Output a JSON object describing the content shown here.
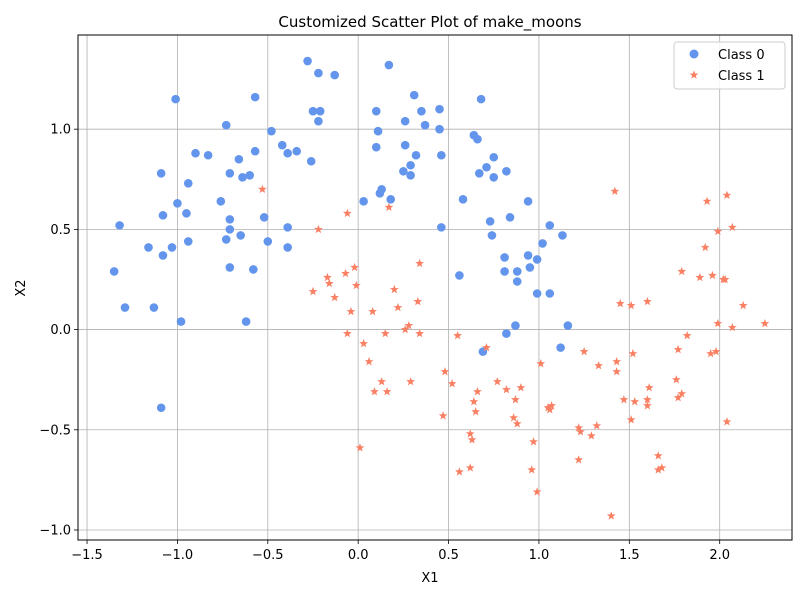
{
  "chart_data": {
    "type": "scatter",
    "title": "Customized Scatter Plot of make_moons",
    "xlabel": "X1",
    "ylabel": "X2",
    "xlim": [
      -1.55,
      2.4
    ],
    "ylim": [
      -1.05,
      1.47
    ],
    "xticks": [
      -1.5,
      -1.0,
      -0.5,
      0.0,
      0.5,
      1.0,
      1.5,
      2.0
    ],
    "xtick_labels": [
      "−1.5",
      "−1.0",
      "−0.5",
      "0.0",
      "0.5",
      "1.0",
      "1.5",
      "2.0"
    ],
    "yticks": [
      -1.0,
      -0.5,
      0.0,
      0.5,
      1.0
    ],
    "ytick_labels": [
      "−1.0",
      "−0.5",
      "0.0",
      "0.5",
      "1.0"
    ],
    "grid": true,
    "legend_position": "top-right",
    "series": [
      {
        "name": "Class 0",
        "marker": "circle",
        "color": "#6495ED",
        "points": [
          [
            -1.35,
            0.29
          ],
          [
            -1.32,
            0.52
          ],
          [
            -1.29,
            0.11
          ],
          [
            -1.16,
            0.41
          ],
          [
            -1.13,
            0.11
          ],
          [
            -1.09,
            0.78
          ],
          [
            -1.08,
            0.57
          ],
          [
            -1.08,
            0.37
          ],
          [
            -1.09,
            -0.39
          ],
          [
            -1.03,
            0.41
          ],
          [
            -1.01,
            1.15
          ],
          [
            -1.0,
            0.63
          ],
          [
            -0.98,
            0.04
          ],
          [
            -0.95,
            0.58
          ],
          [
            -0.94,
            0.73
          ],
          [
            -0.94,
            0.44
          ],
          [
            -0.9,
            0.88
          ],
          [
            -0.83,
            0.87
          ],
          [
            -0.76,
            0.64
          ],
          [
            -0.73,
            1.02
          ],
          [
            -0.73,
            0.45
          ],
          [
            -0.71,
            0.78
          ],
          [
            -0.71,
            0.55
          ],
          [
            -0.71,
            0.5
          ],
          [
            -0.71,
            0.31
          ],
          [
            -0.66,
            0.85
          ],
          [
            -0.65,
            0.47
          ],
          [
            -0.64,
            0.76
          ],
          [
            -0.62,
            0.04
          ],
          [
            -0.6,
            0.77
          ],
          [
            -0.57,
            1.16
          ],
          [
            -0.57,
            0.89
          ],
          [
            -0.58,
            0.3
          ],
          [
            -0.52,
            0.56
          ],
          [
            -0.5,
            0.44
          ],
          [
            -0.48,
            0.99
          ],
          [
            -0.42,
            0.92
          ],
          [
            -0.39,
            0.88
          ],
          [
            -0.39,
            0.51
          ],
          [
            -0.39,
            0.41
          ],
          [
            -0.34,
            0.89
          ],
          [
            -0.28,
            1.34
          ],
          [
            -0.26,
            0.84
          ],
          [
            -0.25,
            1.09
          ],
          [
            -0.22,
            1.28
          ],
          [
            -0.22,
            1.04
          ],
          [
            -0.21,
            1.09
          ],
          [
            -0.13,
            1.27
          ],
          [
            0.03,
            0.64
          ],
          [
            0.1,
            1.09
          ],
          [
            0.1,
            0.91
          ],
          [
            0.11,
            0.99
          ],
          [
            0.12,
            0.68
          ],
          [
            0.13,
            0.7
          ],
          [
            0.17,
            1.32
          ],
          [
            0.18,
            0.65
          ],
          [
            0.25,
            0.79
          ],
          [
            0.26,
            1.04
          ],
          [
            0.26,
            0.92
          ],
          [
            0.29,
            0.82
          ],
          [
            0.29,
            0.77
          ],
          [
            0.31,
            1.17
          ],
          [
            0.32,
            0.87
          ],
          [
            0.35,
            1.09
          ],
          [
            0.37,
            1.02
          ],
          [
            0.45,
            1.1
          ],
          [
            0.45,
            1.0
          ],
          [
            0.46,
            0.87
          ],
          [
            0.46,
            0.51
          ],
          [
            0.56,
            0.27
          ],
          [
            0.58,
            0.65
          ],
          [
            0.64,
            0.97
          ],
          [
            0.66,
            0.95
          ],
          [
            0.67,
            0.78
          ],
          [
            0.68,
            1.15
          ],
          [
            0.69,
            -0.11
          ],
          [
            0.71,
            0.81
          ],
          [
            0.73,
            0.54
          ],
          [
            0.74,
            0.47
          ],
          [
            0.75,
            0.86
          ],
          [
            0.75,
            0.76
          ],
          [
            0.81,
            0.36
          ],
          [
            0.81,
            0.29
          ],
          [
            0.82,
            0.79
          ],
          [
            0.82,
            -0.02
          ],
          [
            0.84,
            0.56
          ],
          [
            0.87,
            0.02
          ],
          [
            0.88,
            0.29
          ],
          [
            0.88,
            0.24
          ],
          [
            0.94,
            0.64
          ],
          [
            0.94,
            0.37
          ],
          [
            0.95,
            0.31
          ],
          [
            0.99,
            0.35
          ],
          [
            0.99,
            0.18
          ],
          [
            1.02,
            0.43
          ],
          [
            1.06,
            0.52
          ],
          [
            1.06,
            0.18
          ],
          [
            1.12,
            -0.09
          ],
          [
            1.13,
            0.47
          ],
          [
            1.16,
            0.02
          ]
        ]
      },
      {
        "name": "Class 1",
        "marker": "star",
        "color": "#FA8064",
        "points": [
          [
            -0.53,
            0.7
          ],
          [
            -0.25,
            0.19
          ],
          [
            -0.22,
            0.5
          ],
          [
            -0.17,
            0.26
          ],
          [
            -0.16,
            0.23
          ],
          [
            -0.13,
            0.16
          ],
          [
            -0.07,
            0.28
          ],
          [
            -0.06,
            0.58
          ],
          [
            -0.06,
            -0.02
          ],
          [
            -0.04,
            0.09
          ],
          [
            -0.02,
            0.31
          ],
          [
            -0.01,
            0.22
          ],
          [
            0.01,
            -0.59
          ],
          [
            0.03,
            -0.07
          ],
          [
            0.06,
            -0.16
          ],
          [
            0.08,
            0.09
          ],
          [
            0.09,
            -0.31
          ],
          [
            0.13,
            -0.26
          ],
          [
            0.15,
            -0.02
          ],
          [
            0.16,
            -0.31
          ],
          [
            0.17,
            0.61
          ],
          [
            0.2,
            0.2
          ],
          [
            0.22,
            0.11
          ],
          [
            0.26,
            0.0
          ],
          [
            0.28,
            0.02
          ],
          [
            0.29,
            -0.26
          ],
          [
            0.33,
            0.14
          ],
          [
            0.34,
            0.33
          ],
          [
            0.34,
            -0.02
          ],
          [
            0.47,
            -0.43
          ],
          [
            0.48,
            -0.21
          ],
          [
            0.52,
            -0.27
          ],
          [
            0.55,
            -0.03
          ],
          [
            0.56,
            -0.71
          ],
          [
            0.62,
            -0.52
          ],
          [
            0.62,
            -0.69
          ],
          [
            0.63,
            -0.55
          ],
          [
            0.64,
            -0.36
          ],
          [
            0.65,
            -0.41
          ],
          [
            0.66,
            -0.31
          ],
          [
            0.71,
            -0.09
          ],
          [
            0.77,
            -0.26
          ],
          [
            0.82,
            -0.3
          ],
          [
            0.86,
            -0.44
          ],
          [
            0.87,
            -0.35
          ],
          [
            0.88,
            -0.47
          ],
          [
            0.9,
            -0.29
          ],
          [
            0.96,
            -0.7
          ],
          [
            0.97,
            -0.56
          ],
          [
            0.99,
            -0.81
          ],
          [
            1.01,
            -0.17
          ],
          [
            1.05,
            -0.39
          ],
          [
            1.06,
            -0.4
          ],
          [
            1.07,
            -0.38
          ],
          [
            1.22,
            -0.65
          ],
          [
            1.22,
            -0.49
          ],
          [
            1.23,
            -0.51
          ],
          [
            1.25,
            -0.11
          ],
          [
            1.29,
            -0.53
          ],
          [
            1.32,
            -0.48
          ],
          [
            1.33,
            -0.18
          ],
          [
            1.4,
            -0.93
          ],
          [
            1.42,
            0.69
          ],
          [
            1.43,
            -0.16
          ],
          [
            1.43,
            -0.21
          ],
          [
            1.45,
            0.13
          ],
          [
            1.47,
            -0.35
          ],
          [
            1.51,
            0.12
          ],
          [
            1.51,
            -0.45
          ],
          [
            1.52,
            -0.12
          ],
          [
            1.53,
            -0.36
          ],
          [
            1.6,
            0.14
          ],
          [
            1.6,
            -0.35
          ],
          [
            1.6,
            -0.38
          ],
          [
            1.61,
            -0.29
          ],
          [
            1.66,
            -0.63
          ],
          [
            1.66,
            -0.7
          ],
          [
            1.68,
            -0.69
          ],
          [
            1.76,
            -0.25
          ],
          [
            1.77,
            -0.1
          ],
          [
            1.77,
            -0.34
          ],
          [
            1.79,
            0.29
          ],
          [
            1.79,
            -0.32
          ],
          [
            1.82,
            -0.03
          ],
          [
            1.89,
            0.26
          ],
          [
            1.92,
            0.41
          ],
          [
            1.93,
            0.64
          ],
          [
            1.95,
            -0.12
          ],
          [
            1.96,
            0.27
          ],
          [
            1.98,
            -0.11
          ],
          [
            1.99,
            0.49
          ],
          [
            1.99,
            0.03
          ],
          [
            2.02,
            0.25
          ],
          [
            2.03,
            0.25
          ],
          [
            2.04,
            0.67
          ],
          [
            2.04,
            -0.46
          ],
          [
            2.07,
            0.51
          ],
          [
            2.07,
            0.01
          ],
          [
            2.13,
            0.12
          ],
          [
            2.25,
            0.03
          ]
        ]
      }
    ]
  }
}
